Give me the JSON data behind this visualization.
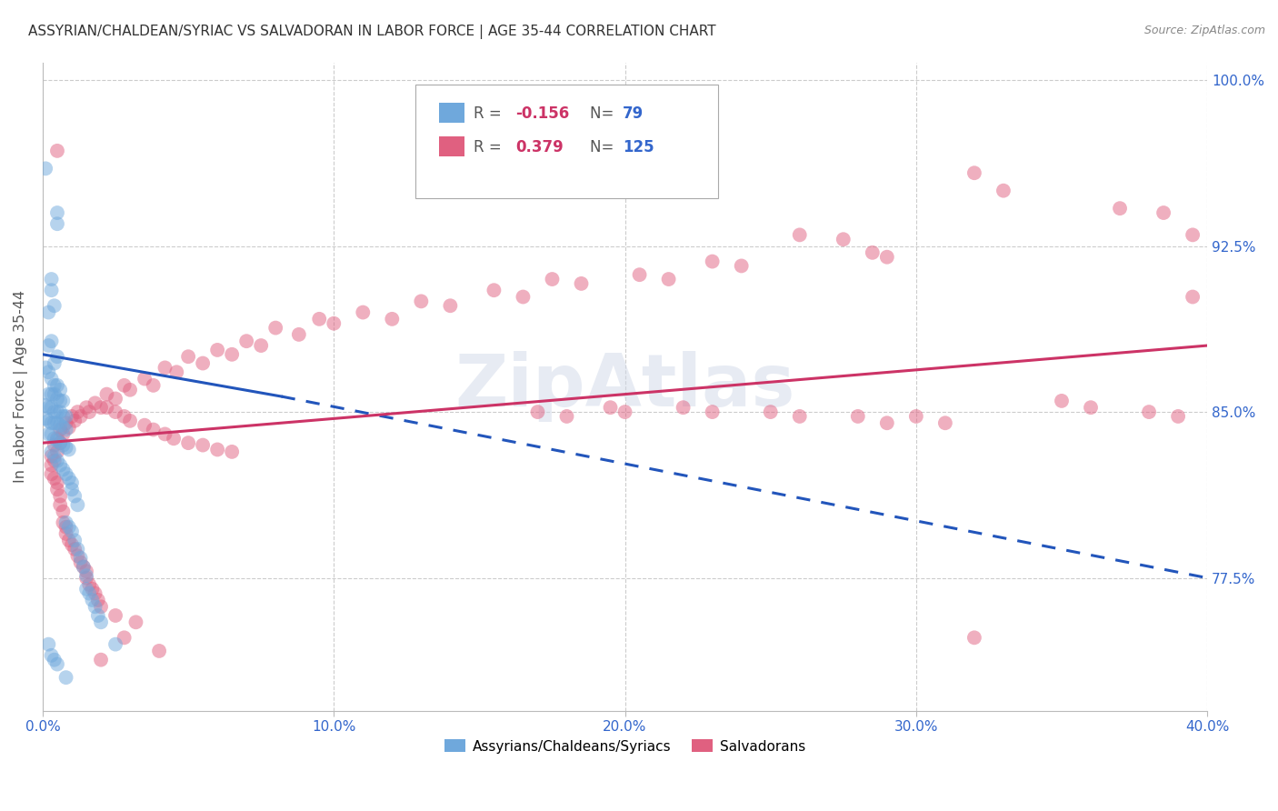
{
  "title": "ASSYRIAN/CHALDEAN/SYRIAC VS SALVADORAN IN LABOR FORCE | AGE 35-44 CORRELATION CHART",
  "source": "Source: ZipAtlas.com",
  "ylabel": "In Labor Force | Age 35-44",
  "xmin": 0.0,
  "xmax": 0.4,
  "ymin": 0.715,
  "ymax": 1.008,
  "yticks": [
    0.775,
    0.85,
    0.925,
    1.0
  ],
  "ytick_labels": [
    "77.5%",
    "85.0%",
    "92.5%",
    "100.0%"
  ],
  "xticks": [
    0.0,
    0.1,
    0.2,
    0.3,
    0.4
  ],
  "xtick_labels": [
    "0.0%",
    "10.0%",
    "20.0%",
    "30.0%",
    "40.0%"
  ],
  "blue_color": "#6fa8dc",
  "pink_color": "#e06080",
  "blue_line_color": "#2255bb",
  "pink_line_color": "#cc3366",
  "blue_scatter": [
    [
      0.001,
      0.96
    ],
    [
      0.005,
      0.935
    ],
    [
      0.005,
      0.94
    ],
    [
      0.003,
      0.91
    ],
    [
      0.003,
      0.905
    ],
    [
      0.002,
      0.895
    ],
    [
      0.004,
      0.898
    ],
    [
      0.002,
      0.88
    ],
    [
      0.003,
      0.882
    ],
    [
      0.004,
      0.872
    ],
    [
      0.005,
      0.875
    ],
    [
      0.001,
      0.87
    ],
    [
      0.002,
      0.868
    ],
    [
      0.003,
      0.865
    ],
    [
      0.004,
      0.862
    ],
    [
      0.005,
      0.862
    ],
    [
      0.006,
      0.86
    ],
    [
      0.002,
      0.858
    ],
    [
      0.003,
      0.858
    ],
    [
      0.004,
      0.858
    ],
    [
      0.005,
      0.856
    ],
    [
      0.006,
      0.855
    ],
    [
      0.007,
      0.855
    ],
    [
      0.001,
      0.853
    ],
    [
      0.002,
      0.852
    ],
    [
      0.003,
      0.852
    ],
    [
      0.004,
      0.85
    ],
    [
      0.005,
      0.85
    ],
    [
      0.006,
      0.85
    ],
    [
      0.007,
      0.848
    ],
    [
      0.008,
      0.848
    ],
    [
      0.001,
      0.847
    ],
    [
      0.002,
      0.846
    ],
    [
      0.003,
      0.845
    ],
    [
      0.004,
      0.845
    ],
    [
      0.005,
      0.845
    ],
    [
      0.006,
      0.844
    ],
    [
      0.007,
      0.843
    ],
    [
      0.008,
      0.842
    ],
    [
      0.002,
      0.84
    ],
    [
      0.003,
      0.84
    ],
    [
      0.004,
      0.838
    ],
    [
      0.005,
      0.837
    ],
    [
      0.006,
      0.836
    ],
    [
      0.007,
      0.835
    ],
    [
      0.008,
      0.834
    ],
    [
      0.009,
      0.833
    ],
    [
      0.003,
      0.832
    ],
    [
      0.004,
      0.83
    ],
    [
      0.005,
      0.828
    ],
    [
      0.006,
      0.826
    ],
    [
      0.007,
      0.824
    ],
    [
      0.008,
      0.822
    ],
    [
      0.009,
      0.82
    ],
    [
      0.01,
      0.818
    ],
    [
      0.01,
      0.815
    ],
    [
      0.011,
      0.812
    ],
    [
      0.012,
      0.808
    ],
    [
      0.008,
      0.8
    ],
    [
      0.009,
      0.798
    ],
    [
      0.01,
      0.796
    ],
    [
      0.011,
      0.792
    ],
    [
      0.012,
      0.788
    ],
    [
      0.013,
      0.784
    ],
    [
      0.014,
      0.78
    ],
    [
      0.015,
      0.776
    ],
    [
      0.015,
      0.77
    ],
    [
      0.016,
      0.768
    ],
    [
      0.017,
      0.765
    ],
    [
      0.018,
      0.762
    ],
    [
      0.019,
      0.758
    ],
    [
      0.02,
      0.755
    ],
    [
      0.025,
      0.745
    ],
    [
      0.002,
      0.745
    ],
    [
      0.003,
      0.74
    ],
    [
      0.004,
      0.738
    ],
    [
      0.005,
      0.736
    ],
    [
      0.008,
      0.73
    ]
  ],
  "pink_scatter": [
    [
      0.005,
      0.968
    ],
    [
      0.32,
      0.958
    ],
    [
      0.33,
      0.95
    ],
    [
      0.37,
      0.942
    ],
    [
      0.385,
      0.94
    ],
    [
      0.395,
      0.93
    ],
    [
      0.26,
      0.93
    ],
    [
      0.275,
      0.928
    ],
    [
      0.285,
      0.922
    ],
    [
      0.29,
      0.92
    ],
    [
      0.23,
      0.918
    ],
    [
      0.24,
      0.916
    ],
    [
      0.205,
      0.912
    ],
    [
      0.215,
      0.91
    ],
    [
      0.175,
      0.91
    ],
    [
      0.185,
      0.908
    ],
    [
      0.395,
      0.902
    ],
    [
      0.155,
      0.905
    ],
    [
      0.165,
      0.902
    ],
    [
      0.13,
      0.9
    ],
    [
      0.14,
      0.898
    ],
    [
      0.11,
      0.895
    ],
    [
      0.12,
      0.892
    ],
    [
      0.095,
      0.892
    ],
    [
      0.1,
      0.89
    ],
    [
      0.08,
      0.888
    ],
    [
      0.088,
      0.885
    ],
    [
      0.07,
      0.882
    ],
    [
      0.075,
      0.88
    ],
    [
      0.06,
      0.878
    ],
    [
      0.065,
      0.876
    ],
    [
      0.05,
      0.875
    ],
    [
      0.055,
      0.872
    ],
    [
      0.042,
      0.87
    ],
    [
      0.046,
      0.868
    ],
    [
      0.035,
      0.865
    ],
    [
      0.038,
      0.862
    ],
    [
      0.028,
      0.862
    ],
    [
      0.03,
      0.86
    ],
    [
      0.022,
      0.858
    ],
    [
      0.025,
      0.856
    ],
    [
      0.018,
      0.854
    ],
    [
      0.02,
      0.852
    ],
    [
      0.015,
      0.852
    ],
    [
      0.016,
      0.85
    ],
    [
      0.012,
      0.85
    ],
    [
      0.013,
      0.848
    ],
    [
      0.01,
      0.848
    ],
    [
      0.011,
      0.846
    ],
    [
      0.008,
      0.845
    ],
    [
      0.009,
      0.843
    ],
    [
      0.006,
      0.842
    ],
    [
      0.007,
      0.84
    ],
    [
      0.005,
      0.838
    ],
    [
      0.006,
      0.836
    ],
    [
      0.004,
      0.835
    ],
    [
      0.005,
      0.832
    ],
    [
      0.003,
      0.83
    ],
    [
      0.004,
      0.828
    ],
    [
      0.003,
      0.826
    ],
    [
      0.003,
      0.822
    ],
    [
      0.004,
      0.82
    ],
    [
      0.005,
      0.818
    ],
    [
      0.005,
      0.815
    ],
    [
      0.006,
      0.812
    ],
    [
      0.006,
      0.808
    ],
    [
      0.007,
      0.805
    ],
    [
      0.007,
      0.8
    ],
    [
      0.008,
      0.798
    ],
    [
      0.008,
      0.795
    ],
    [
      0.009,
      0.792
    ],
    [
      0.01,
      0.79
    ],
    [
      0.011,
      0.788
    ],
    [
      0.012,
      0.785
    ],
    [
      0.013,
      0.782
    ],
    [
      0.014,
      0.78
    ],
    [
      0.015,
      0.778
    ],
    [
      0.015,
      0.775
    ],
    [
      0.016,
      0.772
    ],
    [
      0.017,
      0.77
    ],
    [
      0.018,
      0.768
    ],
    [
      0.019,
      0.765
    ],
    [
      0.02,
      0.762
    ],
    [
      0.025,
      0.758
    ],
    [
      0.032,
      0.755
    ],
    [
      0.028,
      0.748
    ],
    [
      0.04,
      0.742
    ],
    [
      0.02,
      0.738
    ],
    [
      0.32,
      0.748
    ],
    [
      0.022,
      0.852
    ],
    [
      0.025,
      0.85
    ],
    [
      0.028,
      0.848
    ],
    [
      0.03,
      0.846
    ],
    [
      0.035,
      0.844
    ],
    [
      0.038,
      0.842
    ],
    [
      0.042,
      0.84
    ],
    [
      0.045,
      0.838
    ],
    [
      0.05,
      0.836
    ],
    [
      0.055,
      0.835
    ],
    [
      0.06,
      0.833
    ],
    [
      0.065,
      0.832
    ],
    [
      0.35,
      0.855
    ],
    [
      0.36,
      0.852
    ],
    [
      0.38,
      0.85
    ],
    [
      0.39,
      0.848
    ],
    [
      0.3,
      0.848
    ],
    [
      0.31,
      0.845
    ],
    [
      0.28,
      0.848
    ],
    [
      0.29,
      0.845
    ],
    [
      0.25,
      0.85
    ],
    [
      0.26,
      0.848
    ],
    [
      0.22,
      0.852
    ],
    [
      0.23,
      0.85
    ],
    [
      0.195,
      0.852
    ],
    [
      0.2,
      0.85
    ],
    [
      0.17,
      0.85
    ],
    [
      0.18,
      0.848
    ]
  ],
  "blue_line_solid": {
    "x0": 0.0,
    "y0": 0.876,
    "x1": 0.082,
    "y1": 0.857
  },
  "blue_line_dash": {
    "x0": 0.082,
    "y0": 0.857,
    "x1": 0.4,
    "y1": 0.775
  },
  "pink_line": {
    "x0": 0.0,
    "y0": 0.836,
    "x1": 0.4,
    "y1": 0.88
  },
  "background_color": "#ffffff",
  "grid_color": "#cccccc",
  "tick_color": "#3366cc",
  "label_color": "#555555"
}
